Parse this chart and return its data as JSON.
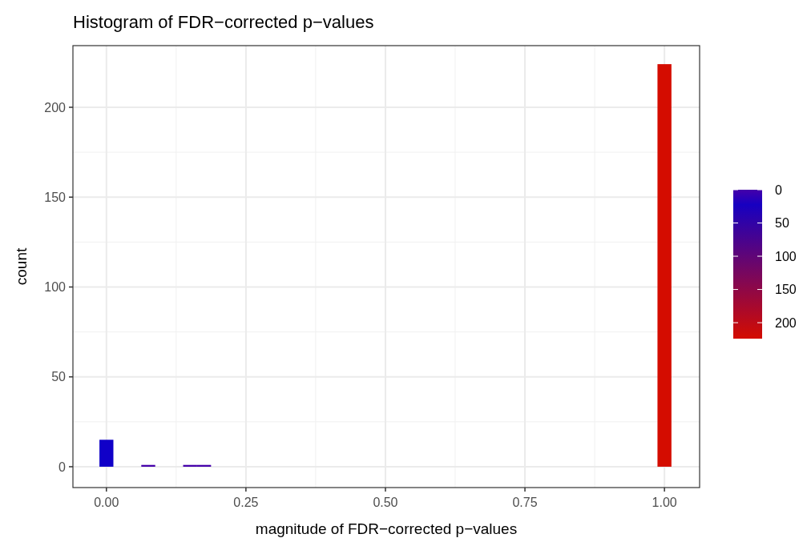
{
  "chart_data": {
    "type": "histogram",
    "title": "Histogram of FDR−corrected p−values",
    "xlabel": "magnitude of FDR−corrected p−values",
    "ylabel": "count",
    "bins": [
      -0.0125,
      0.0125,
      0.0375,
      0.0625,
      0.0875,
      0.1125,
      0.1375,
      0.1625,
      0.1875,
      0.2125,
      0.2375,
      0.2625,
      0.2875,
      0.3125,
      0.3375,
      0.3625,
      0.3875,
      0.4125,
      0.4375,
      0.4625,
      0.4875,
      0.5125,
      0.5375,
      0.5625,
      0.5875,
      0.6125,
      0.6375,
      0.6625,
      0.6875,
      0.7125,
      0.7375,
      0.7625,
      0.7875,
      0.8125,
      0.8375,
      0.8625,
      0.8875,
      0.9125,
      0.9375,
      0.9625,
      0.9875,
      1.0125
    ],
    "values": [
      15,
      0,
      0,
      1,
      0,
      0,
      1,
      1,
      0,
      0,
      0,
      0,
      0,
      0,
      0,
      0,
      0,
      0,
      0,
      0,
      0,
      0,
      0,
      0,
      0,
      0,
      0,
      0,
      0,
      0,
      0,
      0,
      0,
      0,
      0,
      0,
      0,
      0,
      0,
      0,
      224
    ],
    "colors": [
      "#1000c8",
      "#4400aa",
      "#4400aa",
      "#4400aa",
      "#4400aa",
      "#4400aa",
      "#4400aa",
      "#4400aa",
      "#4400aa",
      "#4400aa",
      "#4400aa",
      "#4400aa",
      "#4400aa",
      "#4400aa",
      "#4400aa",
      "#4400aa",
      "#4400aa",
      "#4400aa",
      "#4400aa",
      "#4400aa",
      "#4400aa",
      "#4400aa",
      "#4400aa",
      "#4400aa",
      "#4400aa",
      "#4400aa",
      "#4400aa",
      "#4400aa",
      "#4400aa",
      "#4400aa",
      "#4400aa",
      "#4400aa",
      "#4400aa",
      "#4400aa",
      "#4400aa",
      "#4400aa",
      "#4400aa",
      "#4400aa",
      "#4400aa",
      "#4400aa",
      "#d40c00"
    ],
    "xlim": [
      -0.06,
      1.063
    ],
    "xticks": [
      {
        "value": 0,
        "label": "0.00"
      },
      {
        "value": 0.25,
        "label": "0.25"
      },
      {
        "value": 0.5,
        "label": "0.50"
      },
      {
        "value": 0.75,
        "label": "0.75"
      },
      {
        "value": 1,
        "label": "1.00"
      }
    ],
    "ylim": [
      -11.6,
      234.3
    ],
    "yticks": [
      0,
      50,
      100,
      150,
      200
    ],
    "clim": [
      0,
      224
    ],
    "cticks": [
      0,
      50,
      100,
      150,
      200
    ],
    "grid": true
  }
}
